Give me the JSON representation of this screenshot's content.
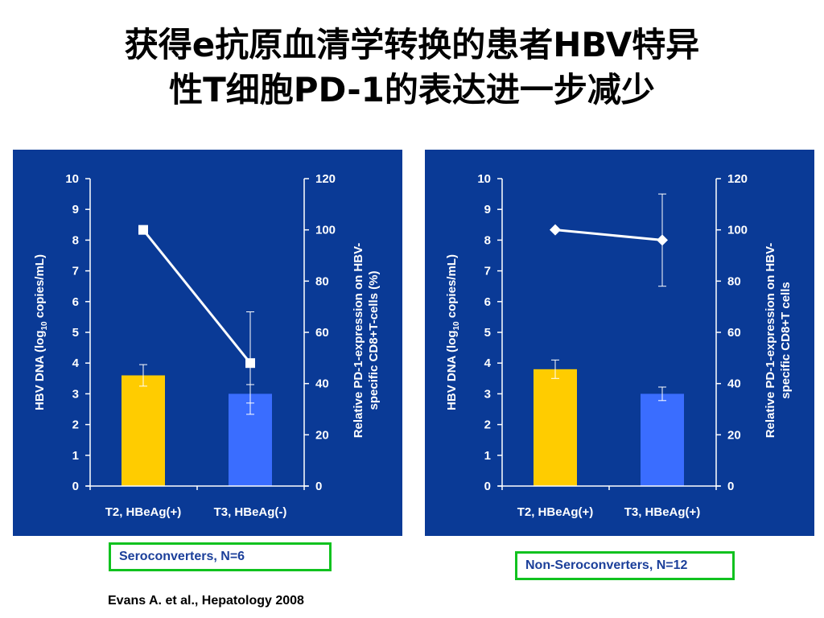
{
  "title": {
    "line1": "获得e抗原血清学转换的患者HBV特异",
    "line2": "性T细胞PD-1的表达进一步减少"
  },
  "citation": "Evans A. et al., Hepatology 2008",
  "colors": {
    "panel_bg": "#0a3a96",
    "bar_t2": "#ffcc00",
    "bar_t3": "#3a6dff",
    "line": "#ffffff",
    "caption_border": "#11c21f",
    "caption_text": "#1b3f9a"
  },
  "chart_data": [
    {
      "type": "bar+line",
      "caption": "Seroconverters, N=6",
      "categories": [
        "T2, HBeAg(+)",
        "T3, HBeAg(-)"
      ],
      "left_axis": {
        "label_prefix": "HBV DNA (log",
        "label_sub": "10",
        "label_suffix": " copies/mL)",
        "ylim": [
          0,
          10
        ],
        "ticks": [
          "0",
          "1",
          "2",
          "3",
          "4",
          "5",
          "6",
          "7",
          "8",
          "9",
          "10"
        ]
      },
      "right_axis": {
        "label_lines": [
          "Relative PD-1-expression on HBV-",
          "specific CD8+T-cells (%)"
        ],
        "ylim": [
          0,
          120
        ],
        "ticks": [
          "0",
          "20",
          "40",
          "60",
          "80",
          "100",
          "120"
        ]
      },
      "bars": {
        "values": [
          3.6,
          3.0
        ],
        "err": [
          0.35,
          0.3
        ]
      },
      "line": {
        "marker": "square",
        "values": [
          100,
          48
        ],
        "err": [
          0,
          20
        ]
      }
    },
    {
      "type": "bar+line",
      "caption": "Non-Seroconverters, N=12",
      "categories": [
        "T2, HBeAg(+)",
        "T3, HBeAg(+)"
      ],
      "left_axis": {
        "label_prefix": "HBV DNA (log",
        "label_sub": "10",
        "label_suffix": " copies/mL)",
        "ylim": [
          0,
          10
        ],
        "ticks": [
          "0",
          "1",
          "2",
          "3",
          "4",
          "5",
          "6",
          "7",
          "8",
          "9",
          "10"
        ]
      },
      "right_axis": {
        "label_lines": [
          "Relative PD-1-expression on HBV-",
          "specific CD8+T cells"
        ],
        "ylim": [
          0,
          120
        ],
        "ticks": [
          "0",
          "20",
          "40",
          "60",
          "80",
          "100",
          "120"
        ]
      },
      "bars": {
        "values": [
          3.8,
          3.0
        ],
        "err": [
          0.3,
          0.22
        ]
      },
      "line": {
        "marker": "diamond",
        "values": [
          100,
          96
        ],
        "err": [
          0,
          18
        ]
      }
    }
  ]
}
